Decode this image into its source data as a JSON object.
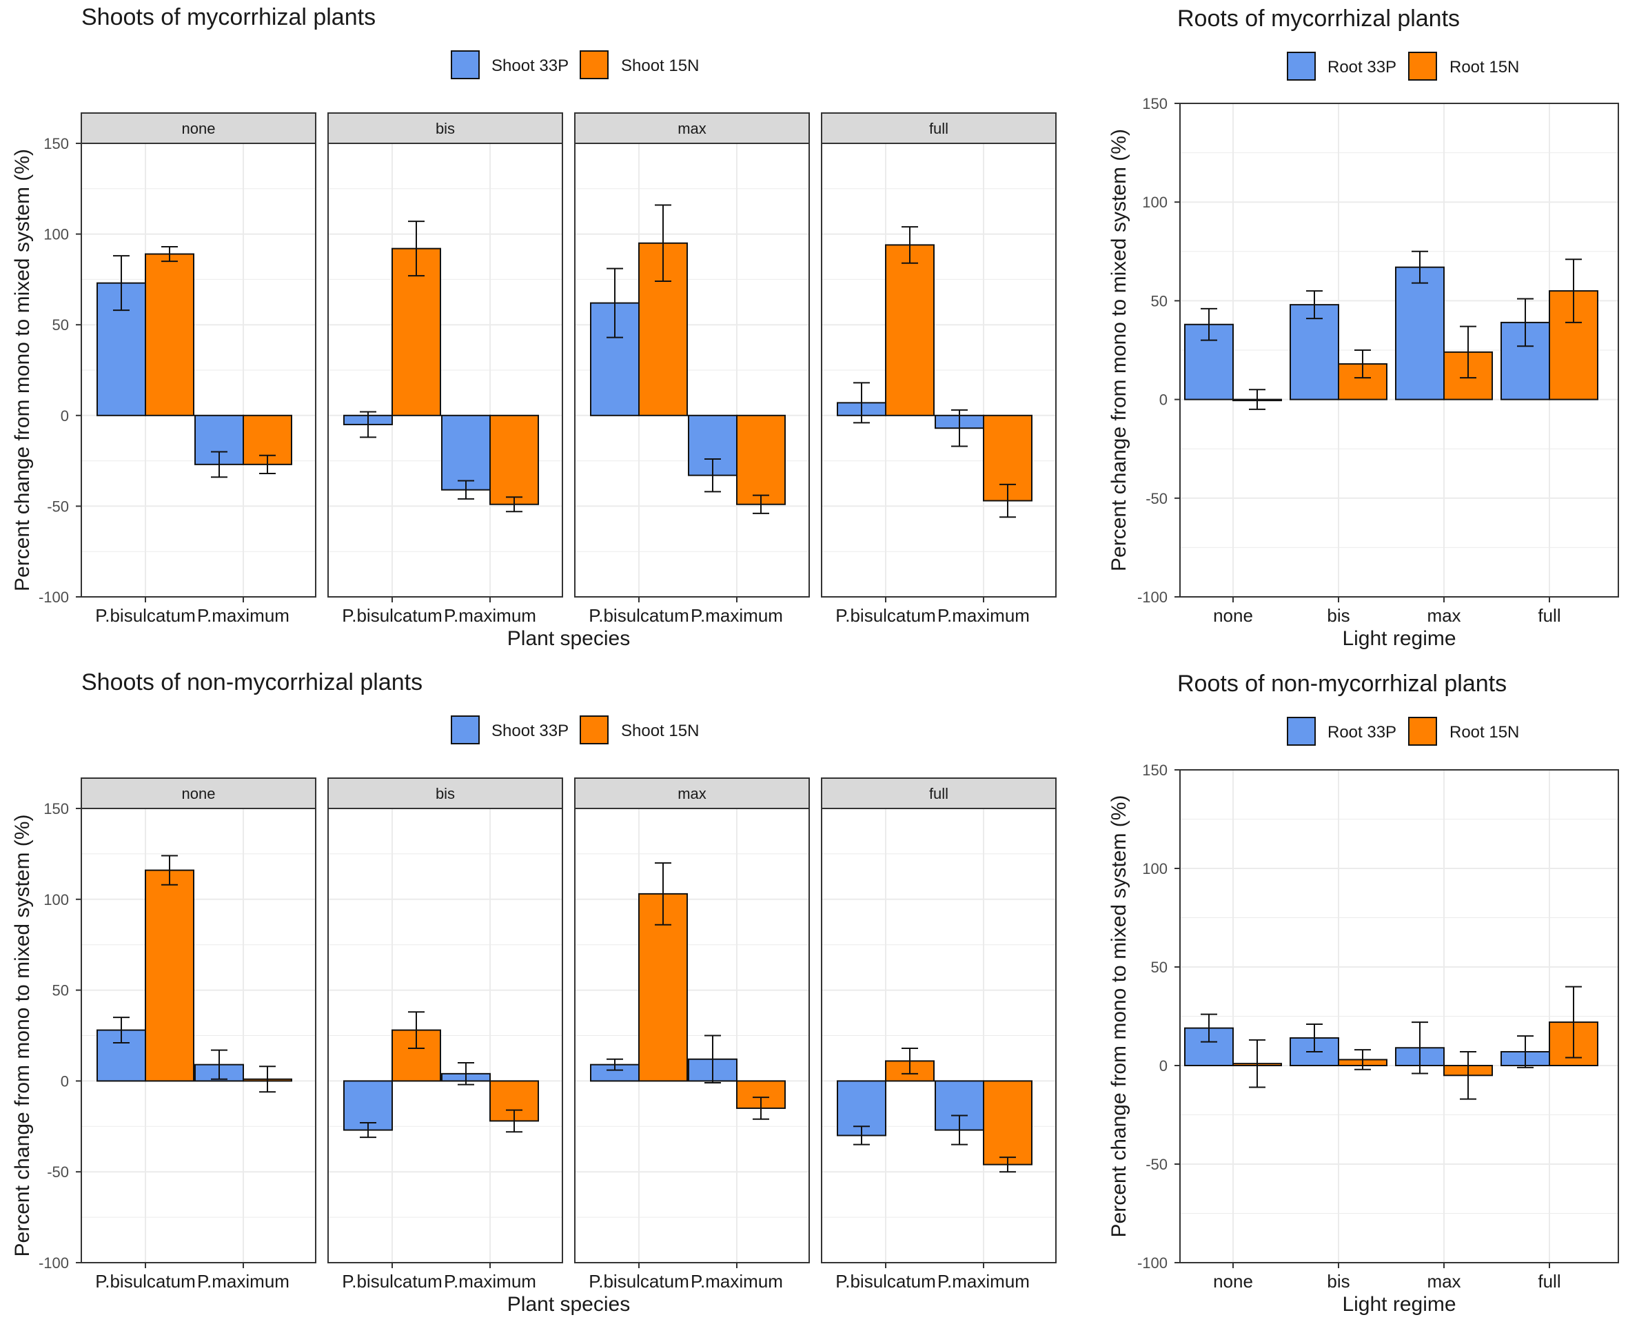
{
  "colors": {
    "blue": "#6699EE",
    "orange": "#FF8000",
    "strip_bg": "#D9D9D9",
    "grid": "#EBEBEB",
    "panel_border": "#333333"
  },
  "chart_data": [
    {
      "id": "shoots_myc",
      "type": "bar",
      "title": "Shoots of mycorrhizal plants",
      "legend": [
        "Shoot 33P",
        "Shoot 15N"
      ],
      "xlabel": "Plant species",
      "ylabel": "Percent change from mono to mixed system (%)",
      "ylim": [
        -100,
        150
      ],
      "yticks": [
        -100,
        -50,
        0,
        50,
        100,
        150
      ],
      "facets": [
        "none",
        "bis",
        "max",
        "full"
      ],
      "categories": [
        "P.bisulcatum",
        "P.maximum"
      ],
      "series": [
        {
          "name": "Shoot 33P",
          "values": [
            [
              73,
              -27
            ],
            [
              -5,
              -41
            ],
            [
              62,
              -33
            ],
            [
              7,
              -7
            ]
          ],
          "errors": [
            [
              15,
              7
            ],
            [
              7,
              5
            ],
            [
              19,
              9
            ],
            [
              11,
              10
            ]
          ]
        },
        {
          "name": "Shoot 15N",
          "values": [
            [
              89,
              -27
            ],
            [
              92,
              -49
            ],
            [
              95,
              -49
            ],
            [
              94,
              -47
            ]
          ],
          "errors": [
            [
              4,
              5
            ],
            [
              15,
              4
            ],
            [
              21,
              5
            ],
            [
              10,
              9
            ]
          ]
        }
      ]
    },
    {
      "id": "roots_myc",
      "type": "bar",
      "title": "Roots of mycorrhizal plants",
      "legend": [
        "Root 33P",
        "Root 15N"
      ],
      "xlabel": "Light regime",
      "ylabel": "Percent change from mono to mixed system (%)",
      "ylim": [
        -100,
        150
      ],
      "yticks": [
        -100,
        -50,
        0,
        50,
        100,
        150
      ],
      "categories": [
        "none",
        "bis",
        "max",
        "full"
      ],
      "series": [
        {
          "name": "Root 33P",
          "values": [
            38,
            48,
            67,
            39
          ],
          "errors": [
            8,
            7,
            8,
            12
          ]
        },
        {
          "name": "Root 15N",
          "values": [
            0,
            18,
            24,
            55
          ],
          "errors": [
            5,
            7,
            13,
            16
          ]
        }
      ]
    },
    {
      "id": "shoots_nonmyc",
      "type": "bar",
      "title": "Shoots of non-mycorrhizal plants",
      "legend": [
        "Shoot 33P",
        "Shoot 15N"
      ],
      "xlabel": "Plant species",
      "ylabel": "Percent change from mono to mixed system (%)",
      "ylim": [
        -100,
        150
      ],
      "yticks": [
        -100,
        -50,
        0,
        50,
        100,
        150
      ],
      "facets": [
        "none",
        "bis",
        "max",
        "full"
      ],
      "categories": [
        "P.bisulcatum",
        "P.maximum"
      ],
      "series": [
        {
          "name": "Shoot 33P",
          "values": [
            [
              28,
              9
            ],
            [
              -27,
              4
            ],
            [
              9,
              12
            ],
            [
              -30,
              -27
            ]
          ],
          "errors": [
            [
              7,
              8
            ],
            [
              4,
              6
            ],
            [
              3,
              13
            ],
            [
              5,
              8
            ]
          ]
        },
        {
          "name": "Shoot 15N",
          "values": [
            [
              116,
              1
            ],
            [
              28,
              -22
            ],
            [
              103,
              -15
            ],
            [
              11,
              -46
            ]
          ],
          "errors": [
            [
              8,
              7
            ],
            [
              10,
              6
            ],
            [
              17,
              6
            ],
            [
              7,
              4
            ]
          ]
        }
      ]
    },
    {
      "id": "roots_nonmyc",
      "type": "bar",
      "title": "Roots of non-mycorrhizal plants",
      "legend": [
        "Root 33P",
        "Root 15N"
      ],
      "xlabel": "Light regime",
      "ylabel": "Percent change from mono to mixed system (%)",
      "ylim": [
        -100,
        150
      ],
      "yticks": [
        -100,
        -50,
        0,
        50,
        100,
        150
      ],
      "categories": [
        "none",
        "bis",
        "max",
        "full"
      ],
      "series": [
        {
          "name": "Root 33P",
          "values": [
            19,
            14,
            9,
            7
          ],
          "errors": [
            7,
            7,
            13,
            8
          ]
        },
        {
          "name": "Root 15N",
          "values": [
            1,
            3,
            -5,
            22
          ],
          "errors": [
            12,
            5,
            12,
            18
          ]
        }
      ]
    }
  ]
}
